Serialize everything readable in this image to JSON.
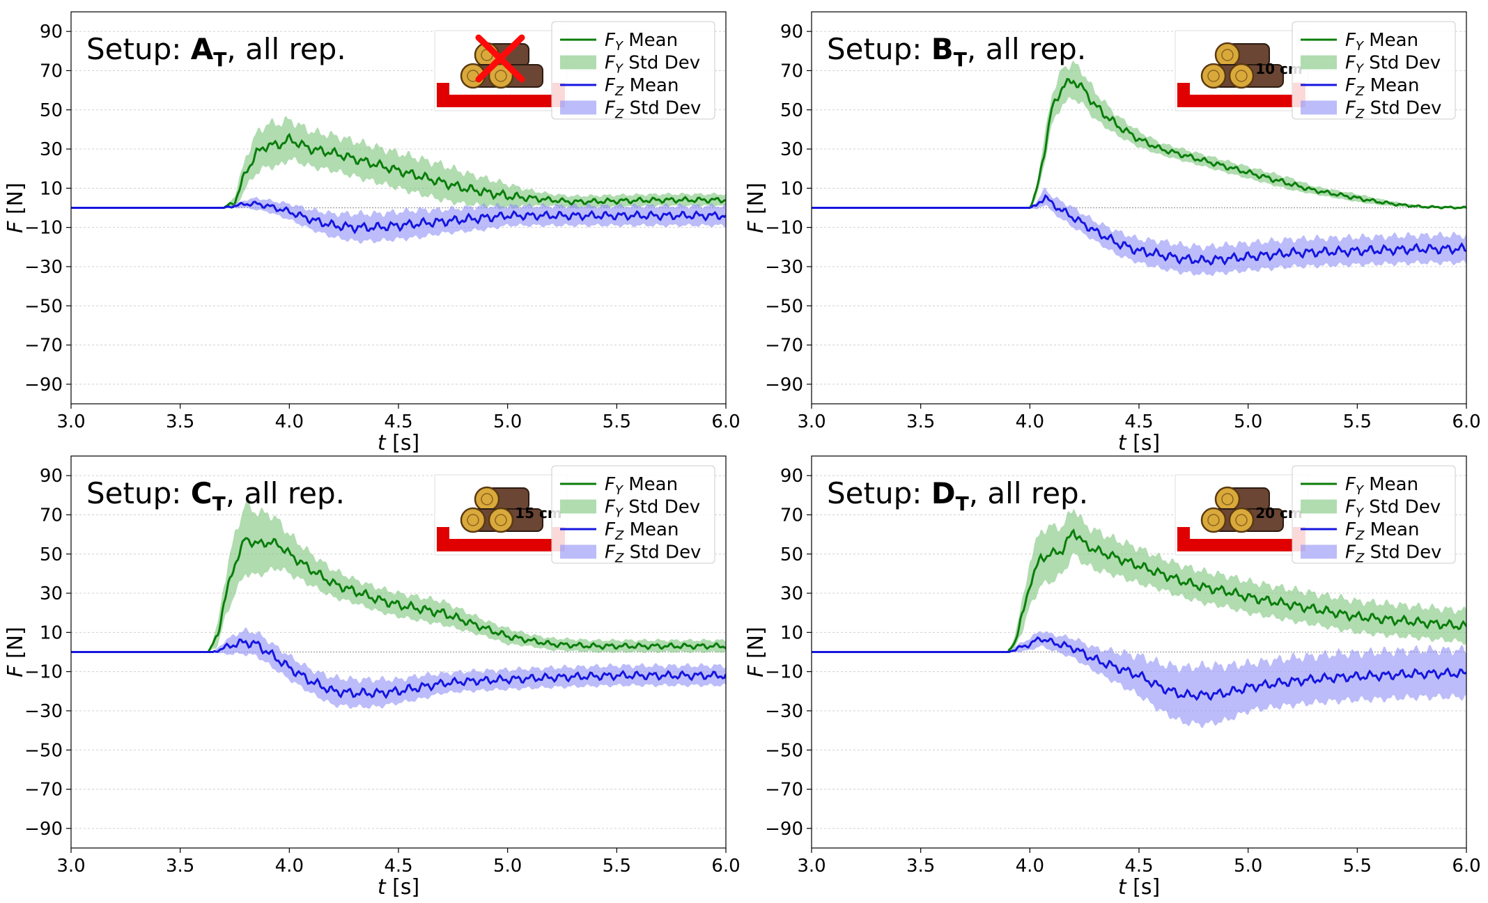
{
  "chart_data": [
    {
      "type": "line",
      "setup_prefix": "Setup: ",
      "setup_letter": "A",
      "setup_sub": "T",
      "setup_suffix": ", all rep.",
      "icon_variant": "crossed",
      "icon_label": "",
      "xlabel_italic": "t",
      "xlabel_unit": " [s]",
      "ylabel_italic": "F",
      "ylabel_unit": " [N]",
      "xlim": [
        3.0,
        6.0
      ],
      "ylim": [
        -100,
        100
      ],
      "x_ticks": [
        "3.0",
        "3.5",
        "4.0",
        "4.5",
        "5.0",
        "5.5",
        "6.0"
      ],
      "y_ticks": [
        "90",
        "70",
        "50",
        "30",
        "10",
        "−10",
        "−30",
        "−50",
        "−70",
        "−90"
      ],
      "legend_position": "top-right",
      "legend": [
        {
          "sym": "F",
          "sub": "Y",
          "text": " Mean"
        },
        {
          "sym": "F",
          "sub": "Y",
          "text": " Std Dev"
        },
        {
          "sym": "F",
          "sub": "Z",
          "text": " Mean"
        },
        {
          "sym": "F",
          "sub": "Z",
          "text": " Std Dev"
        }
      ],
      "series": [
        {
          "name": "FY",
          "color": "#0a7d0a",
          "band_color": "#7bc47b",
          "x": [
            3.0,
            3.7,
            3.75,
            3.8,
            3.85,
            3.9,
            3.95,
            4.0,
            4.1,
            4.2,
            4.3,
            4.4,
            4.5,
            4.6,
            4.7,
            4.8,
            4.9,
            5.0,
            5.1,
            5.2,
            5.3,
            5.5,
            5.7,
            6.0
          ],
          "mean": [
            0,
            0,
            3,
            18,
            28,
            32,
            32,
            35,
            30,
            28,
            25,
            22,
            19,
            16,
            13,
            10,
            8,
            6,
            5,
            4,
            3,
            3.5,
            4,
            4
          ],
          "std": [
            0,
            0,
            3,
            8,
            10,
            11,
            11,
            10,
            9,
            9,
            9,
            9,
            9,
            9,
            9,
            8,
            7,
            6,
            4,
            3,
            3,
            3,
            3,
            3
          ]
        },
        {
          "name": "FZ",
          "color": "#1515e0",
          "band_color": "#8f8ff7",
          "x": [
            3.0,
            3.7,
            3.75,
            3.8,
            3.85,
            3.9,
            4.0,
            4.1,
            4.2,
            4.3,
            4.4,
            4.5,
            4.6,
            4.7,
            4.8,
            4.9,
            5.0,
            5.2,
            5.5,
            6.0
          ],
          "mean": [
            0,
            0,
            1,
            2,
            2,
            1,
            -2,
            -6,
            -9,
            -10,
            -10,
            -9,
            -8,
            -7,
            -6,
            -5,
            -4,
            -4,
            -4,
            -4
          ],
          "std": [
            0,
            0,
            1,
            2,
            3,
            3,
            4,
            5,
            6,
            7,
            7,
            7,
            7,
            6,
            6,
            6,
            5,
            5,
            5,
            5
          ]
        }
      ]
    },
    {
      "type": "line",
      "setup_prefix": "Setup: ",
      "setup_letter": "B",
      "setup_sub": "T",
      "setup_suffix": ", all rep.",
      "icon_variant": "gap",
      "icon_label": "10 cm",
      "xlabel_italic": "t",
      "xlabel_unit": " [s]",
      "ylabel_italic": "F",
      "ylabel_unit": " [N]",
      "xlim": [
        3.0,
        6.0
      ],
      "ylim": [
        -100,
        100
      ],
      "x_ticks": [
        "3.0",
        "3.5",
        "4.0",
        "4.5",
        "5.0",
        "5.5",
        "6.0"
      ],
      "y_ticks": [
        "90",
        "70",
        "50",
        "30",
        "10",
        "−10",
        "−30",
        "−50",
        "−70",
        "−90"
      ],
      "legend_position": "top-right",
      "legend": [
        {
          "sym": "F",
          "sub": "Y",
          "text": " Mean"
        },
        {
          "sym": "F",
          "sub": "Y",
          "text": " Std Dev"
        },
        {
          "sym": "F",
          "sub": "Z",
          "text": " Mean"
        },
        {
          "sym": "F",
          "sub": "Z",
          "text": " Std Dev"
        }
      ],
      "series": [
        {
          "name": "FY",
          "color": "#0a7d0a",
          "band_color": "#7bc47b",
          "x": [
            3.0,
            4.0,
            4.03,
            4.06,
            4.1,
            4.15,
            4.2,
            4.25,
            4.3,
            4.4,
            4.5,
            4.6,
            4.7,
            4.8,
            4.9,
            5.0,
            5.1,
            5.2,
            5.3,
            5.4,
            5.5,
            5.6,
            5.7,
            5.8,
            6.0
          ],
          "mean": [
            0,
            0,
            8,
            25,
            50,
            62,
            65,
            60,
            52,
            42,
            35,
            30,
            27,
            24,
            21,
            18,
            15,
            12,
            9,
            7,
            5,
            3,
            1.5,
            0.5,
            0
          ],
          "std": [
            0,
            0,
            3,
            6,
            8,
            9,
            9,
            8,
            7,
            5,
            4,
            3,
            3,
            3,
            3,
            3,
            3,
            3,
            2,
            2,
            2,
            1.5,
            1,
            0.5,
            0.5
          ]
        },
        {
          "name": "FZ",
          "color": "#1515e0",
          "band_color": "#8f8ff7",
          "x": [
            3.0,
            4.0,
            4.03,
            4.07,
            4.1,
            4.2,
            4.3,
            4.4,
            4.5,
            4.6,
            4.7,
            4.8,
            4.9,
            5.0,
            5.2,
            5.5,
            5.8,
            6.0
          ],
          "mean": [
            0,
            0,
            1,
            6,
            2,
            -5,
            -12,
            -18,
            -22,
            -24,
            -26,
            -27,
            -26,
            -25,
            -23,
            -22,
            -21,
            -21
          ],
          "std": [
            0,
            0,
            2,
            4,
            4,
            5,
            5,
            6,
            6,
            7,
            7,
            7,
            7,
            7,
            7,
            7,
            7,
            7
          ]
        }
      ]
    },
    {
      "type": "line",
      "setup_prefix": "Setup: ",
      "setup_letter": "C",
      "setup_sub": "T",
      "setup_suffix": ", all rep.",
      "icon_variant": "gap",
      "icon_label": "15 cm",
      "xlabel_italic": "t",
      "xlabel_unit": " [s]",
      "ylabel_italic": "F",
      "ylabel_unit": " [N]",
      "xlim": [
        3.0,
        6.0
      ],
      "ylim": [
        -100,
        100
      ],
      "x_ticks": [
        "3.0",
        "3.5",
        "4.0",
        "4.5",
        "5.0",
        "5.5",
        "6.0"
      ],
      "y_ticks": [
        "90",
        "70",
        "50",
        "30",
        "10",
        "−10",
        "−30",
        "−50",
        "−70",
        "−90"
      ],
      "legend_position": "top-right",
      "legend": [
        {
          "sym": "F",
          "sub": "Y",
          "text": " Mean"
        },
        {
          "sym": "F",
          "sub": "Y",
          "text": " Std Dev"
        },
        {
          "sym": "F",
          "sub": "Z",
          "text": " Mean"
        },
        {
          "sym": "F",
          "sub": "Z",
          "text": " Std Dev"
        }
      ],
      "series": [
        {
          "name": "FY",
          "color": "#0a7d0a",
          "band_color": "#7bc47b",
          "x": [
            3.0,
            3.63,
            3.67,
            3.7,
            3.75,
            3.8,
            3.85,
            3.9,
            3.95,
            4.0,
            4.1,
            4.2,
            4.3,
            4.4,
            4.5,
            4.6,
            4.7,
            4.8,
            4.9,
            5.0,
            5.1,
            5.2,
            5.4,
            5.6,
            6.0
          ],
          "mean": [
            0,
            0,
            8,
            25,
            45,
            58,
            55,
            56,
            55,
            50,
            42,
            35,
            31,
            27,
            24,
            22,
            20,
            16,
            12,
            8,
            6,
            4,
            3,
            3,
            3
          ],
          "std": [
            0,
            0,
            5,
            10,
            15,
            18,
            16,
            15,
            12,
            10,
            8,
            7,
            6,
            6,
            6,
            6,
            6,
            5,
            4,
            4,
            3,
            3,
            3,
            3,
            3
          ]
        },
        {
          "name": "FZ",
          "color": "#1515e0",
          "band_color": "#8f8ff7",
          "x": [
            3.0,
            3.65,
            3.7,
            3.75,
            3.8,
            3.85,
            3.9,
            4.0,
            4.1,
            4.2,
            4.3,
            4.4,
            4.5,
            4.6,
            4.7,
            4.8,
            5.0,
            5.2,
            5.5,
            6.0
          ],
          "mean": [
            0,
            0,
            2,
            4,
            5,
            4,
            0,
            -8,
            -15,
            -20,
            -21,
            -21,
            -20,
            -18,
            -16,
            -15,
            -14,
            -13,
            -12,
            -12
          ],
          "std": [
            0,
            0,
            3,
            5,
            6,
            6,
            6,
            6,
            6,
            7,
            7,
            7,
            6,
            6,
            5,
            5,
            5,
            5,
            5,
            5
          ]
        }
      ]
    },
    {
      "type": "line",
      "setup_prefix": "Setup: ",
      "setup_letter": "D",
      "setup_sub": "T",
      "setup_suffix": ", all rep.",
      "icon_variant": "gap",
      "icon_label": "20 cm",
      "xlabel_italic": "t",
      "xlabel_unit": " [s]",
      "ylabel_italic": "F",
      "ylabel_unit": " [N]",
      "xlim": [
        3.0,
        6.0
      ],
      "ylim": [
        -100,
        100
      ],
      "x_ticks": [
        "3.0",
        "3.5",
        "4.0",
        "4.5",
        "5.0",
        "5.5",
        "6.0"
      ],
      "y_ticks": [
        "90",
        "70",
        "50",
        "30",
        "10",
        "−10",
        "−30",
        "−50",
        "−70",
        "−90"
      ],
      "legend_position": "top-right",
      "legend": [
        {
          "sym": "F",
          "sub": "Y",
          "text": " Mean"
        },
        {
          "sym": "F",
          "sub": "Y",
          "text": " Std Dev"
        },
        {
          "sym": "F",
          "sub": "Z",
          "text": " Mean"
        },
        {
          "sym": "F",
          "sub": "Z",
          "text": " Std Dev"
        }
      ],
      "series": [
        {
          "name": "FY",
          "color": "#0a7d0a",
          "band_color": "#7bc47b",
          "x": [
            3.0,
            3.9,
            3.93,
            3.97,
            4.0,
            4.05,
            4.1,
            4.15,
            4.2,
            4.25,
            4.3,
            4.4,
            4.5,
            4.6,
            4.7,
            4.8,
            4.9,
            5.0,
            5.1,
            5.2,
            5.3,
            5.4,
            5.5,
            5.6,
            5.7,
            5.8,
            5.9,
            6.0
          ],
          "mean": [
            0,
            0,
            5,
            20,
            35,
            48,
            50,
            52,
            62,
            55,
            52,
            48,
            44,
            40,
            36,
            33,
            31,
            28,
            26,
            24,
            22,
            20,
            18,
            17,
            16,
            15,
            14,
            13
          ],
          "std": [
            0,
            0,
            3,
            8,
            12,
            14,
            14,
            12,
            12,
            10,
            10,
            9,
            9,
            8,
            8,
            8,
            8,
            8,
            8,
            8,
            8,
            8,
            8,
            8,
            8,
            8,
            8,
            8
          ]
        },
        {
          "name": "FZ",
          "color": "#1515e0",
          "band_color": "#8f8ff7",
          "x": [
            3.0,
            3.9,
            3.95,
            4.0,
            4.05,
            4.1,
            4.2,
            4.3,
            4.4,
            4.5,
            4.6,
            4.7,
            4.8,
            4.9,
            5.0,
            5.2,
            5.4,
            5.6,
            5.8,
            6.0
          ],
          "mean": [
            0,
            0,
            2,
            4,
            7,
            5,
            2,
            -4,
            -8,
            -12,
            -18,
            -22,
            -22,
            -21,
            -18,
            -15,
            -13,
            -12,
            -11,
            -11
          ],
          "std": [
            0,
            0,
            2,
            3,
            4,
            4,
            5,
            6,
            8,
            10,
            12,
            14,
            15,
            14,
            12,
            12,
            12,
            12,
            12,
            12
          ]
        }
      ]
    }
  ]
}
